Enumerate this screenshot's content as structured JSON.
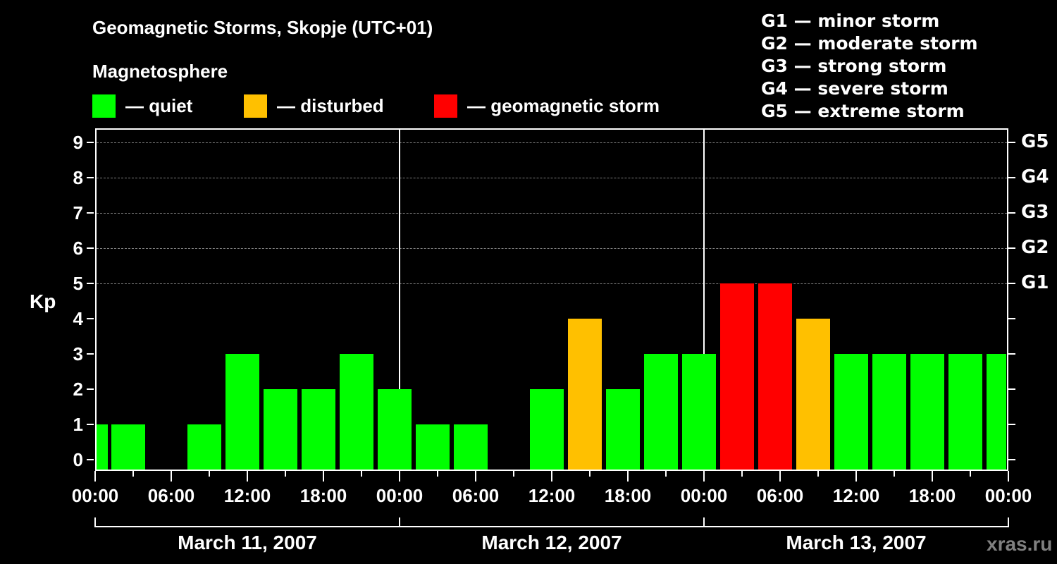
{
  "header": {
    "title": "Geomagnetic Storms, Skopje (UTC+01)",
    "subtitle": "Magnetosphere"
  },
  "legend": [
    {
      "label": "— quiet",
      "color": "#00ff00"
    },
    {
      "label": "— disturbed",
      "color": "#ffc000"
    },
    {
      "label": "— geomagnetic storm",
      "color": "#ff0000"
    }
  ],
  "g_scale": [
    "G1 — minor storm",
    "G2 — moderate storm",
    "G3 — strong storm",
    "G4 — severe storm",
    "G5 — extreme storm"
  ],
  "axes": {
    "y_label": "Kp",
    "y_ticks": [
      "0",
      "1",
      "2",
      "3",
      "4",
      "5",
      "6",
      "7",
      "8",
      "9"
    ],
    "g_ticks": [
      "G1",
      "G2",
      "G3",
      "G4",
      "G5"
    ],
    "x_ticks": [
      "00:00",
      "06:00",
      "12:00",
      "18:00",
      "00:00",
      "06:00",
      "12:00",
      "18:00",
      "00:00",
      "06:00",
      "12:00",
      "18:00",
      "00:00"
    ],
    "days": [
      "March 11, 2007",
      "March 12, 2007",
      "March 13, 2007"
    ]
  },
  "watermark": "xras.ru",
  "chart_data": {
    "type": "bar",
    "title": "Geomagnetic Storms, Skopje (UTC+01)",
    "subtitle": "Magnetosphere",
    "xlabel": "",
    "ylabel": "Kp",
    "ylim": [
      0,
      9
    ],
    "y2_labels": {
      "5": "G1",
      "6": "G2",
      "7": "G3",
      "8": "G4",
      "9": "G5"
    },
    "grid": "dashed horizontal at Kp 5-9",
    "legend": [
      "quiet",
      "disturbed",
      "geomagnetic storm"
    ],
    "categories": [
      "Mar 11 00:00-01:00",
      "Mar 11 01:00",
      "Mar 11 04:00",
      "Mar 11 07:00",
      "Mar 11 10:00",
      "Mar 11 13:00",
      "Mar 11 16:00",
      "Mar 11 19:00",
      "Mar 11 22:00",
      "Mar 12 01:00",
      "Mar 12 04:00",
      "Mar 12 07:00",
      "Mar 12 10:00",
      "Mar 12 13:00",
      "Mar 12 16:00",
      "Mar 12 19:00",
      "Mar 12 22:00",
      "Mar 13 01:00",
      "Mar 13 04:00",
      "Mar 13 07:00",
      "Mar 13 10:00",
      "Mar 13 13:00",
      "Mar 13 16:00",
      "Mar 13 19:00",
      "Mar 13 22:00"
    ],
    "values": [
      1,
      1,
      0,
      1,
      3,
      2,
      2,
      3,
      2,
      1,
      1,
      0,
      2,
      4,
      2,
      3,
      3,
      5,
      5,
      4,
      3,
      3,
      3,
      3,
      3
    ],
    "status": [
      "quiet",
      "quiet",
      "quiet",
      "quiet",
      "quiet",
      "quiet",
      "quiet",
      "quiet",
      "quiet",
      "quiet",
      "quiet",
      "quiet",
      "quiet",
      "disturbed",
      "quiet",
      "quiet",
      "quiet",
      "storm",
      "storm",
      "disturbed",
      "quiet",
      "quiet",
      "quiet",
      "quiet",
      "quiet"
    ],
    "colors": {
      "quiet": "#00ff00",
      "disturbed": "#ffc000",
      "storm": "#ff0000"
    }
  }
}
